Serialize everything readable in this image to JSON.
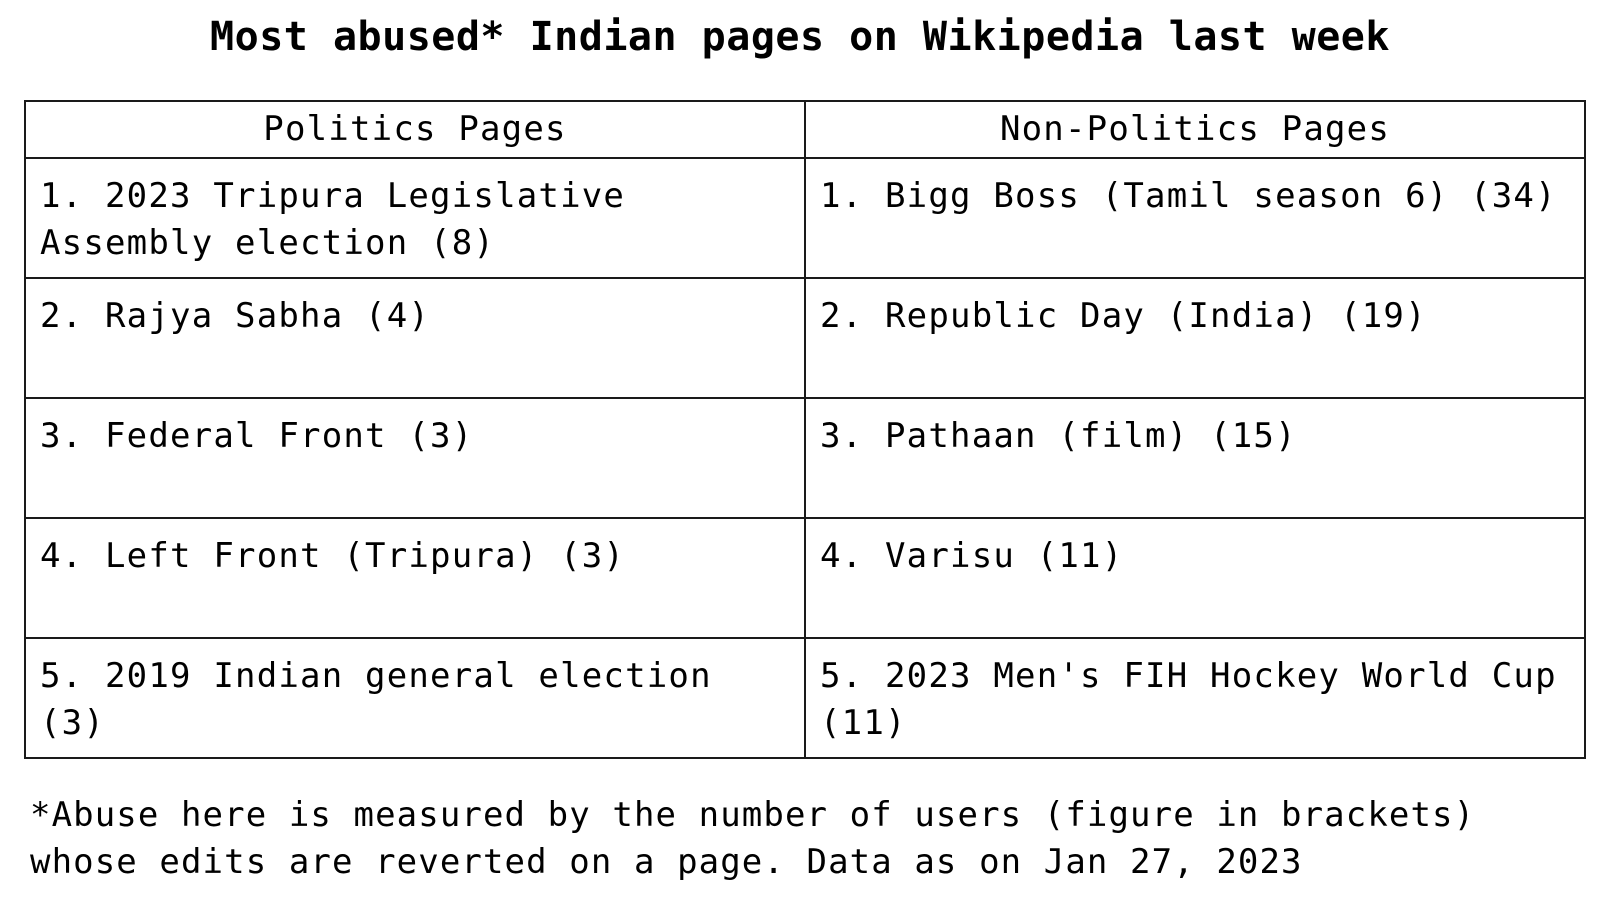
{
  "chart_data": {
    "type": "table",
    "title": "Most abused* Indian pages on Wikipedia last week",
    "columns": [
      "Politics Pages",
      "Non-Politics Pages"
    ],
    "rows": [
      [
        "1. 2023 Tripura Legislative Assembly election (8)",
        "1. Bigg Boss (Tamil season 6) (34)"
      ],
      [
        "2. Rajya Sabha (4)",
        "2. Republic Day (India) (19)"
      ],
      [
        "3. Federal Front (3)",
        "3. Pathaan (film) (15)"
      ],
      [
        "4. Left Front (Tripura) (3)",
        "4. Varisu (11)"
      ],
      [
        "5. 2019 Indian general election (3)",
        "5. 2023 Men's FIH Hockey World Cup (11)"
      ]
    ],
    "series": [
      {
        "name": "Politics Pages",
        "categories": [
          "2023 Tripura Legislative Assembly election",
          "Rajya Sabha",
          "Federal Front",
          "Left Front (Tripura)",
          "2019 Indian general election"
        ],
        "values": [
          8,
          4,
          3,
          3,
          3
        ]
      },
      {
        "name": "Non-Politics Pages",
        "categories": [
          "Bigg Boss (Tamil season 6)",
          "Republic Day (India)",
          "Pathaan (film)",
          "Varisu",
          "2023 Men's FIH Hockey World Cup"
        ],
        "values": [
          34,
          19,
          15,
          11,
          11
        ]
      }
    ],
    "footnote": "*Abuse here is measured by the number of users (figure in brackets)\n whose edits are reverted on a page. Data as on Jan 27, 2023"
  }
}
